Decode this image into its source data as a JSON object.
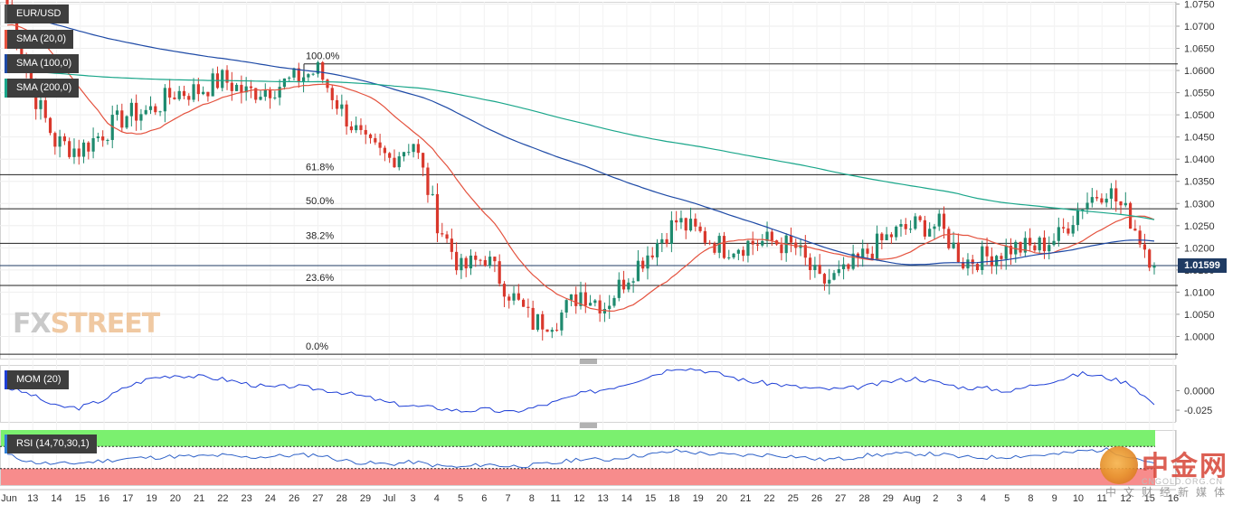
{
  "chart_data": [
    {
      "type": "candlestick",
      "symbol": "EUR/USD",
      "indicators": [
        {
          "name": "SMA (20,0)",
          "color": "#e4523e"
        },
        {
          "name": "SMA (100,0)",
          "color": "#1e4aa6"
        },
        {
          "name": "SMA (200,0)",
          "color": "#1aa68a"
        }
      ],
      "y_ticks": [
        "1.0750",
        "1.0700",
        "1.0650",
        "1.0600",
        "1.0550",
        "1.0500",
        "1.0450",
        "1.0400",
        "1.0350",
        "1.0300",
        "1.0250",
        "1.0200",
        "1.0150",
        "1.0100",
        "1.0050",
        "1.0000"
      ],
      "ylim": [
        0.995,
        1.0755
      ],
      "last_price": "1.01599",
      "colors": {
        "up": "#1e8a6e",
        "down": "#d9382c",
        "sma20": "#e4523e",
        "sma100": "#1e4aa6",
        "sma200": "#1aa68a"
      },
      "fibonacci": [
        {
          "label": "100.0%",
          "value": 1.0615
        },
        {
          "label": "61.8%",
          "value": 1.0365
        },
        {
          "label": "50.0%",
          "value": 1.0288
        },
        {
          "label": "38.2%",
          "value": 1.021
        },
        {
          "label": "23.6%",
          "value": 1.0115
        },
        {
          "label": "0.0%",
          "value": 0.996
        }
      ],
      "x_ticks": [
        "Jun",
        "13",
        "14",
        "15",
        "16",
        "17",
        "19",
        "20",
        "21",
        "22",
        "23",
        "24",
        "26",
        "27",
        "28",
        "29",
        "Jul",
        "3",
        "4",
        "5",
        "6",
        "7",
        "8",
        "11",
        "12",
        "13",
        "14",
        "15",
        "18",
        "19",
        "20",
        "21",
        "22",
        "25",
        "26",
        "27",
        "28",
        "29",
        "Aug",
        "2",
        "3",
        "4",
        "5",
        "8",
        "9",
        "10",
        "11",
        "12",
        "15",
        "16"
      ],
      "daily_closes": [
        1.075,
        1.056,
        1.044,
        1.042,
        1.046,
        1.05,
        1.051,
        1.055,
        1.0555,
        1.058,
        1.055,
        1.056,
        1.058,
        1.06,
        1.051,
        1.043,
        1.04,
        1.044,
        1.026,
        1.015,
        1.018,
        1.01,
        1.003,
        1.004,
        1.01,
        1.007,
        1.014,
        1.02,
        1.026,
        1.023,
        1.02,
        1.021,
        1.0215,
        1.02,
        1.012,
        1.014,
        1.019,
        1.023,
        1.025,
        1.025,
        1.017,
        1.018,
        1.02,
        1.02,
        1.0225,
        1.03,
        1.0335,
        1.0265,
        1.016
      ]
    },
    {
      "type": "line",
      "title": "MOM (20)",
      "y_ticks": [
        "0.0000",
        "-0.025"
      ],
      "ylim": [
        -0.04,
        0.033
      ],
      "series": [
        {
          "name": "MOM (20)",
          "color": "#1e3fd6",
          "values": [
            0.004,
            -0.005,
            -0.02,
            -0.022,
            -0.012,
            0.005,
            0.016,
            0.02,
            0.018,
            0.015,
            0.009,
            0.004,
            0.006,
            0.002,
            -0.002,
            -0.008,
            -0.016,
            -0.02,
            -0.022,
            -0.026,
            -0.024,
            -0.028,
            -0.022,
            -0.014,
            -0.004,
            0.002,
            0.01,
            0.02,
            0.03,
            0.027,
            0.02,
            0.012,
            0.009,
            0.005,
            0.002,
            0.002,
            0.006,
            0.012,
            0.016,
            0.01,
            0.004,
            0.003,
            -0.001,
            0.008,
            0.014,
            0.022,
            0.017,
            0.009,
            -0.018
          ]
        }
      ]
    },
    {
      "type": "line",
      "title": "RSI (14,70,30,1)",
      "ylim": [
        0,
        100
      ],
      "overbought": 70,
      "oversold": 30,
      "series": [
        {
          "name": "RSI (14,70,30,1)",
          "color": "#2f62c8",
          "values": [
            55,
            42,
            38,
            40,
            44,
            48,
            50,
            52,
            52,
            54,
            50,
            52,
            54,
            55,
            45,
            40,
            38,
            42,
            35,
            32,
            38,
            34,
            36,
            40,
            48,
            45,
            52,
            56,
            62,
            58,
            55,
            54,
            55,
            52,
            46,
            48,
            54,
            56,
            57,
            56,
            50,
            50,
            52,
            54,
            56,
            62,
            64,
            52,
            40
          ]
        }
      ]
    }
  ],
  "watermarks": {
    "fxstreet_a": "FX",
    "fxstreet_b": "STREET",
    "cn_main": "中金网",
    "cn_site": "CNGOLD.ORG.CN",
    "cn_sub": "中文财经新媒体"
  }
}
